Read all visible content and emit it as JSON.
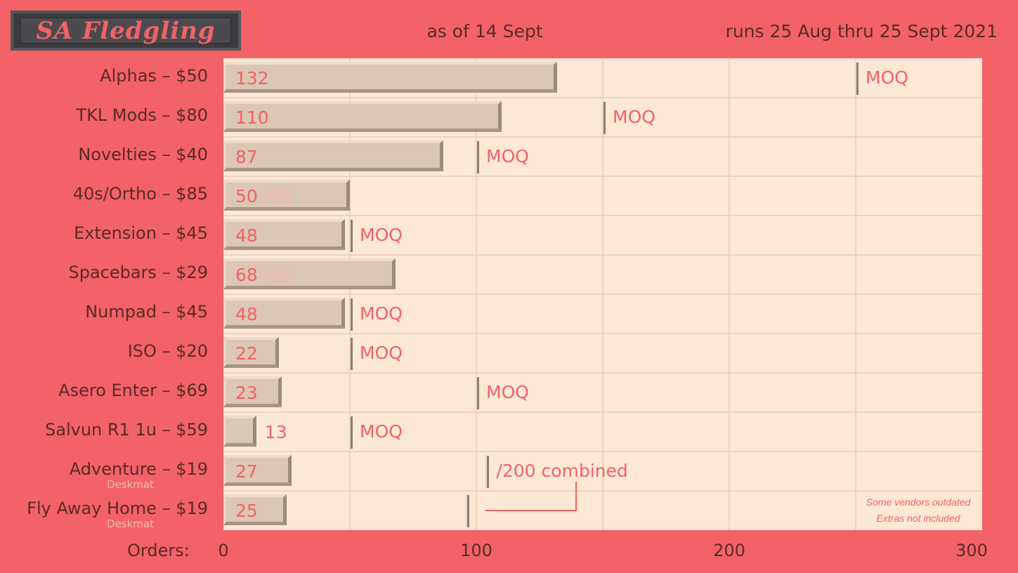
{
  "header": {
    "logo_text": "SA Fledgling",
    "as_of": "as of 14 Sept",
    "run_dates": "runs 25 Aug thru 25 Sept 2021"
  },
  "colors": {
    "background": "#f26266",
    "plot_background": "#fde8d6",
    "bar": "#dcc6b4",
    "accent_text": "#f26266",
    "label_text": "#5a2a2a"
  },
  "chart_data": {
    "type": "bar",
    "orientation": "horizontal",
    "xlabel": "Orders:",
    "xlim": [
      0,
      300
    ],
    "xticks": [
      0,
      100,
      200,
      300
    ],
    "grid": true,
    "categories": [
      {
        "label": "Alphas – $50",
        "sublabel": "",
        "value": 132,
        "value_text": "132",
        "extra_text": "",
        "moq": 250,
        "moq_label": "MOQ"
      },
      {
        "label": "TKL Mods – $80",
        "sublabel": "",
        "value": 110,
        "value_text": "110",
        "extra_text": "",
        "moq": 150,
        "moq_label": "MOQ"
      },
      {
        "label": "Novelties – $40",
        "sublabel": "",
        "value": 87,
        "value_text": "87",
        "extra_text": "",
        "moq": 100,
        "moq_label": "MOQ"
      },
      {
        "label": "40s/Ortho – $85",
        "sublabel": "",
        "value": 50,
        "value_text": "50",
        "extra_text": "/50",
        "moq": null,
        "moq_label": ""
      },
      {
        "label": "Extension – $45",
        "sublabel": "",
        "value": 48,
        "value_text": "48",
        "extra_text": "",
        "moq": 50,
        "moq_label": "MOQ"
      },
      {
        "label": "Spacebars – $29",
        "sublabel": "",
        "value": 68,
        "value_text": "68",
        "extra_text": "/50",
        "moq": null,
        "moq_label": ""
      },
      {
        "label": "Numpad – $45",
        "sublabel": "",
        "value": 48,
        "value_text": "48",
        "extra_text": "",
        "moq": 50,
        "moq_label": "MOQ"
      },
      {
        "label": "ISO – $20",
        "sublabel": "",
        "value": 22,
        "value_text": "22",
        "extra_text": "",
        "moq": 50,
        "moq_label": "MOQ"
      },
      {
        "label": "Asero Enter – $69",
        "sublabel": "",
        "value": 23,
        "value_text": "23",
        "extra_text": "",
        "moq": 100,
        "moq_label": "MOQ"
      },
      {
        "label": "Salvun R1 1u – $59",
        "sublabel": "",
        "value": 13,
        "value_text": "13",
        "extra_text": "",
        "moq": 50,
        "moq_label": "MOQ"
      },
      {
        "label": "Adventure – $19",
        "sublabel": "Deskmat",
        "value": 27,
        "value_text": "27",
        "extra_text": "",
        "moq": 104,
        "moq_label": "/200 combined"
      },
      {
        "label": "Fly Away Home – $19",
        "sublabel": "Deskmat",
        "value": 25,
        "value_text": "25",
        "extra_text": "",
        "moq": 96,
        "moq_label": ""
      }
    ],
    "notes": [
      "Some vendors outdated",
      "Extras not included"
    ]
  }
}
